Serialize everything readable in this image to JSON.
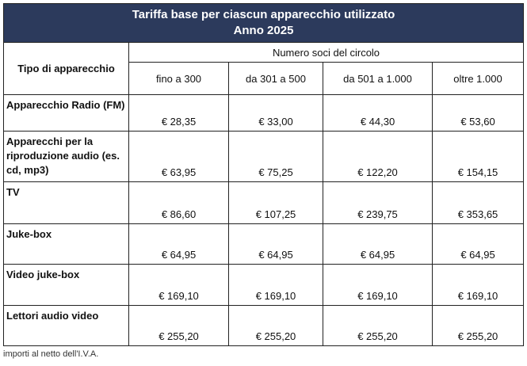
{
  "title": {
    "line1": "Tariffa base per ciascun apparecchio utilizzato",
    "line2": "Anno 2025"
  },
  "header": {
    "type_label": "Tipo di apparecchio",
    "group_label": "Numero soci del circolo",
    "ranges": [
      "fino a 300",
      "da 301 a 500",
      "da 501 a 1.000",
      "oltre 1.000"
    ]
  },
  "rows": [
    {
      "label": "Apparecchio Radio (FM)",
      "prices": [
        "€ 28,35",
        "€ 33,00",
        "€ 44,30",
        "€ 53,60"
      ]
    },
    {
      "label": "Apparecchi per la riproduzione audio (es. cd, mp3)",
      "prices": [
        "€ 63,95",
        "€ 75,25",
        "€ 122,20",
        "€ 154,15"
      ]
    },
    {
      "label": "TV",
      "prices": [
        "€ 86,60",
        "€ 107,25",
        "€ 239,75",
        "€ 353,65"
      ]
    },
    {
      "label": "Juke-box",
      "prices": [
        "€ 64,95",
        "€ 64,95",
        "€ 64,95",
        "€ 64,95"
      ]
    },
    {
      "label": "Video juke-box",
      "prices": [
        "€ 169,10",
        "€ 169,10",
        "€ 169,10",
        "€ 169,10"
      ]
    },
    {
      "label": "Lettori audio video",
      "prices": [
        "€ 255,20",
        "€ 255,20",
        "€ 255,20",
        "€ 255,20"
      ]
    }
  ],
  "footnote": "importi al netto dell'I.V.A."
}
